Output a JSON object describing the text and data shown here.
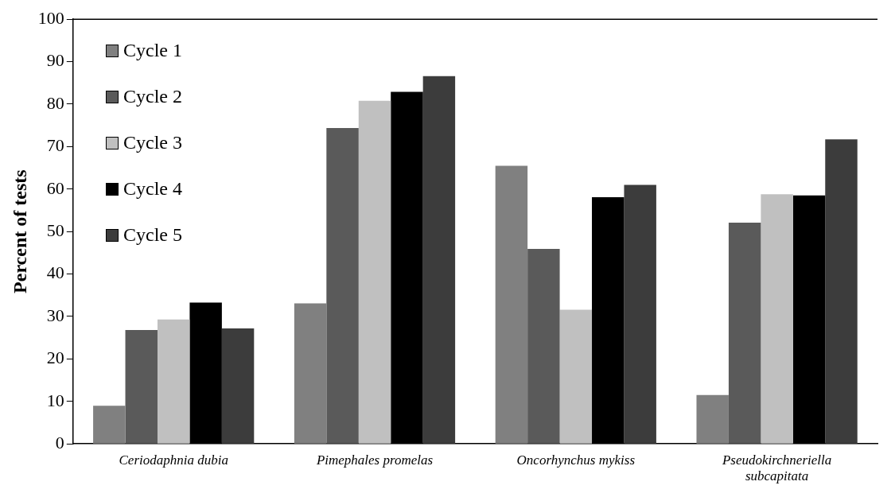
{
  "chart_data": {
    "type": "bar",
    "ylabel": "Percent of tests",
    "categories": [
      "Ceriodaphnia dubia",
      "Pimephales promelas",
      "Oncorhynchus mykiss",
      "Pseudokirchneriella subcapitata"
    ],
    "series": [
      {
        "name": "Cycle 1",
        "color": "#808080",
        "values": [
          9,
          33.1,
          65.5,
          11.5
        ]
      },
      {
        "name": "Cycle 2",
        "color": "#5a5a5a",
        "values": [
          26.8,
          74.4,
          45.9,
          52.1
        ]
      },
      {
        "name": "Cycle 3",
        "color": "#c0c0c0",
        "values": [
          29.3,
          80.8,
          31.6,
          58.8
        ]
      },
      {
        "name": "Cycle 4",
        "color": "#000000",
        "values": [
          33.3,
          82.9,
          58.1,
          58.5
        ]
      },
      {
        "name": "Cycle 5",
        "color": "#3c3c3c",
        "values": [
          27.2,
          86.6,
          61.0,
          71.7
        ]
      }
    ],
    "ylim": [
      0,
      100
    ],
    "yticks": [
      0,
      10,
      20,
      30,
      40,
      50,
      60,
      70,
      80,
      90,
      100
    ],
    "grid": false,
    "legend": "top left"
  }
}
